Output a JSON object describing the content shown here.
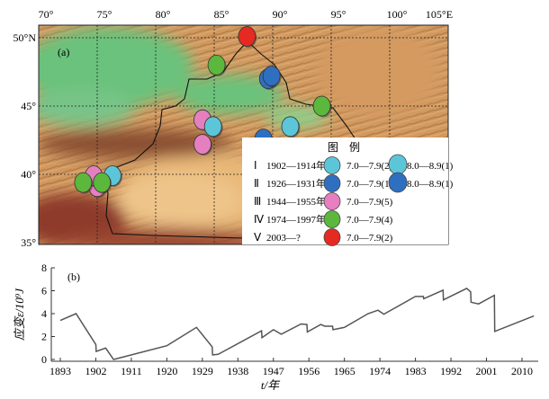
{
  "map": {
    "panel_label": "(a)",
    "lon_ticks": [
      "70°",
      "75°",
      "80°",
      "85°",
      "90°",
      "95°",
      "100°",
      "105°E"
    ],
    "lat_ticks": [
      "50°N",
      "45°",
      "40°",
      "35°"
    ],
    "colors": {
      "I": "#5cc6d8",
      "II": "#2f6fc0",
      "III": "#e67fbf",
      "IV": "#5cb83c",
      "V": "#e52a22"
    },
    "earthquakes": [
      {
        "period": "V",
        "lon": 87.8,
        "lat": 50.1
      },
      {
        "period": "IV",
        "lon": 85.2,
        "lat": 48.0
      },
      {
        "period": "II",
        "lon": 89.6,
        "lat": 47.0
      },
      {
        "period": "II",
        "lon": 89.9,
        "lat": 47.2
      },
      {
        "period": "IV",
        "lon": 94.2,
        "lat": 45.0
      },
      {
        "period": "III",
        "lon": 84.0,
        "lat": 44.0
      },
      {
        "period": "I",
        "lon": 84.9,
        "lat": 43.5
      },
      {
        "period": "I",
        "lon": 91.5,
        "lat": 43.5
      },
      {
        "period": "III",
        "lon": 84.0,
        "lat": 42.2
      },
      {
        "period": "II",
        "lon": 89.2,
        "lat": 42.6
      },
      {
        "period": "III",
        "lon": 75.0,
        "lat": 39.1
      },
      {
        "period": "III",
        "lon": 74.7,
        "lat": 39.9
      },
      {
        "period": "I",
        "lon": 76.3,
        "lat": 39.9
      },
      {
        "period": "IV",
        "lon": 73.8,
        "lat": 39.4
      },
      {
        "period": "IV",
        "lon": 75.4,
        "lat": 39.4
      }
    ],
    "legend": {
      "title": "图　例",
      "rows": [
        {
          "numeral": "Ⅰ",
          "years": "1902—1914年",
          "color": "#5cc6d8",
          "range1": "7.0—7.9(2)",
          "range2": "8.0—8.9(1)"
        },
        {
          "numeral": "Ⅱ",
          "years": "1926—1931年",
          "color": "#2f6fc0",
          "range1": "7.0—7.9(1)",
          "range2": "8.0—8.9(1)"
        },
        {
          "numeral": "Ⅲ",
          "years": "1944—1955年",
          "color": "#e67fbf",
          "range1": "7.0—7.9(5)"
        },
        {
          "numeral": "Ⅳ",
          "years": "1974—1997年",
          "color": "#5cb83c",
          "range1": "7.0—7.9(4)"
        },
        {
          "numeral": "Ⅴ",
          "years": "2003—?",
          "color": "#e52a22",
          "range1": "7.0—7.9(2)"
        }
      ]
    }
  },
  "chart_data": {
    "type": "line",
    "panel_label": "(b)",
    "xlabel": "t/年",
    "ylabel": "应变ε/10⁹J",
    "xlim": [
      1893,
      2014
    ],
    "ylim": [
      0,
      8
    ],
    "xticks": [
      1893,
      1902,
      1911,
      1920,
      1929,
      1938,
      1947,
      1956,
      1965,
      1974,
      1983,
      1992,
      2001,
      2010
    ],
    "yticks": [
      0,
      2,
      4,
      6,
      8
    ],
    "grid": false,
    "series": [
      {
        "x": [
          1893,
          1897,
          1902,
          1902.1,
          1904.5,
          1906.5,
          1920,
          1927.5,
          1931.5,
          1931.6,
          1933,
          1944,
          1944.1,
          1947,
          1949,
          1954,
          1955.5,
          1955.6,
          1959,
          1960,
          1962,
          1962.1,
          1965,
          1971,
          1973.5,
          1975,
          1983,
          1985,
          1985.1,
          1990,
          1990.1,
          1996,
          1997,
          1997.1,
          1999,
          2003,
          2003.1,
          2013
        ],
        "y": [
          3.4,
          4.0,
          1.3,
          0.7,
          1.0,
          0.0,
          1.2,
          2.8,
          1.1,
          0.4,
          0.45,
          2.5,
          1.9,
          2.6,
          2.2,
          3.1,
          3.05,
          2.4,
          3.05,
          2.9,
          2.9,
          2.6,
          2.8,
          4.0,
          4.3,
          3.95,
          5.5,
          5.5,
          5.3,
          6.05,
          5.2,
          6.2,
          5.9,
          5.0,
          4.85,
          5.6,
          2.45,
          3.8
        ]
      }
    ]
  }
}
